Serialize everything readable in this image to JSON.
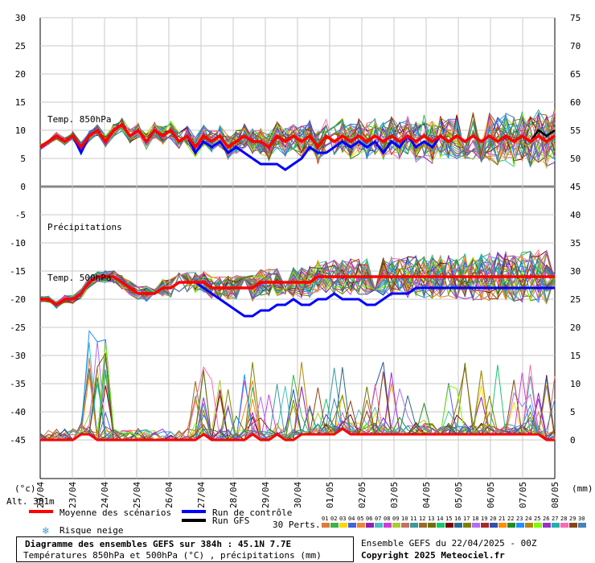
{
  "chart_data": {
    "type": "line",
    "title": "Diagramme des ensembles GEFS sur 384h : 45.1N 7.7E",
    "subtitle": "Températures 850hPa et 500hPa (°C) , précipitations (mm)",
    "run_info": "Ensemble GEFS du 22/04/2025 - 00Z",
    "copyright": "Copyright 2025 Meteociel.fr",
    "left_unit": "(°c)",
    "right_unit": "(mm)",
    "altitude": "Alt. 381m",
    "left_axis": {
      "ylim": [
        -45,
        30
      ],
      "ticks": [
        "30",
        "25",
        "20",
        "15",
        "10",
        "5",
        "0",
        "-5",
        "-10",
        "-15",
        "-20",
        "-25",
        "-30",
        "-35",
        "-40",
        "-45"
      ]
    },
    "right_axis": {
      "ylim": [
        0,
        75
      ],
      "ticks": [
        "75",
        "70",
        "65",
        "60",
        "55",
        "50",
        "45",
        "40",
        "35",
        "30",
        "25",
        "20",
        "15",
        "10",
        "5",
        "0"
      ]
    },
    "x_ticks": [
      "23/04",
      "24/04",
      "25/04",
      "26/04",
      "27/04",
      "28/04",
      "29/04",
      "30/04",
      "01/05",
      "02/05",
      "03/05",
      "04/05",
      "05/05",
      "06/05",
      "07/05",
      "08/05"
    ],
    "panel_labels": {
      "t850": "Temp. 850hPa",
      "precip": "Précipitations",
      "t500": "Temp. 500hPa"
    },
    "legend": {
      "mean": "Moyenne des scénarios",
      "control": "Run de contrôle",
      "gfs": "Run GFS",
      "snow": "Risque neige",
      "perts": "30 Perts.",
      "pert_numbers": [
        "01",
        "02",
        "03",
        "04",
        "05",
        "06",
        "07",
        "08",
        "09",
        "10",
        "11",
        "12",
        "13",
        "14",
        "15",
        "16",
        "17",
        "18",
        "19",
        "20",
        "21",
        "22",
        "23",
        "24",
        "25",
        "26",
        "27",
        "28",
        "29",
        "30"
      ]
    },
    "colors": {
      "mean": "#ff0000",
      "control": "#0000ff",
      "gfs": "#000000",
      "perts": [
        "#e07a3a",
        "#3cb44b",
        "#ffd700",
        "#4363d8",
        "#f58231",
        "#911eb4",
        "#46c0c0",
        "#d63ad6",
        "#aacc33",
        "#c87060",
        "#3a9a9a",
        "#9a6a2a",
        "#707000",
        "#17c46f",
        "#800000",
        "#2a6a8a",
        "#808000",
        "#b070f0",
        "#a52a2a",
        "#3050b0",
        "#ff8c00",
        "#228b22",
        "#1e90ff",
        "#b8860b",
        "#7cfc00",
        "#9932cc",
        "#20b2aa",
        "#ff69b4",
        "#8b4513",
        "#4682b4"
      ]
    },
    "series": {
      "t850_mean": [
        7,
        8,
        9,
        8,
        9,
        7,
        9,
        10,
        8,
        10,
        11,
        9,
        10,
        8,
        10,
        9,
        10,
        8,
        9,
        7,
        9,
        8,
        9,
        7,
        8,
        9,
        8,
        8,
        7,
        9,
        8,
        9,
        8,
        9,
        7,
        9,
        8,
        9,
        8,
        9,
        8,
        9,
        8,
        9,
        8,
        9,
        8,
        9,
        8,
        9,
        8,
        9,
        8,
        9,
        8,
        9,
        8,
        9,
        8,
        9,
        8,
        9,
        8,
        9
      ],
      "t850_control": [
        7,
        8,
        9,
        8,
        9,
        6,
        9,
        10,
        8,
        10,
        11,
        9,
        10,
        8,
        10,
        9,
        10,
        8,
        9,
        6,
        8,
        7,
        8,
        6,
        7,
        6,
        5,
        4,
        4,
        4,
        3,
        4,
        5,
        7,
        6,
        6,
        7,
        8,
        7,
        8,
        7,
        8,
        6,
        8,
        7,
        9,
        7,
        8,
        7,
        9,
        8,
        9,
        8,
        9,
        8,
        9,
        8,
        9,
        8,
        9,
        8,
        9,
        8,
        9
      ],
      "t850_gfs": [
        7,
        8,
        9,
        8,
        9,
        7,
        9,
        10,
        8,
        10,
        11,
        9,
        10,
        8,
        10,
        9,
        10,
        8,
        9,
        7,
        9,
        8,
        9,
        7,
        8,
        9,
        8,
        8,
        7,
        9,
        8,
        9,
        8,
        9,
        7,
        9,
        8,
        9,
        8,
        9,
        8,
        9,
        8,
        9,
        8,
        9,
        8,
        9,
        8,
        9,
        8,
        9,
        8,
        9,
        8,
        9,
        8,
        9,
        8,
        9,
        8,
        10,
        9,
        10
      ],
      "t500_mean": [
        -20,
        -20,
        -21,
        -20,
        -20,
        -19,
        -17,
        -16,
        -16,
        -16,
        -17,
        -18,
        -19,
        -19,
        -19,
        -18,
        -18,
        -17,
        -17,
        -17,
        -17,
        -18,
        -18,
        -18,
        -18,
        -18,
        -18,
        -17,
        -17,
        -17,
        -17,
        -17,
        -17,
        -17,
        -16,
        -16,
        -16,
        -16,
        -16,
        -16,
        -16,
        -16,
        -16,
        -16,
        -16,
        -16,
        -16,
        -16,
        -16,
        -16,
        -16,
        -16,
        -16,
        -16,
        -16,
        -16,
        -16,
        -16,
        -16,
        -16,
        -16,
        -16,
        -16,
        -16
      ],
      "t500_control": [
        -20,
        -20,
        -21,
        -20,
        -20,
        -19,
        -17,
        -16,
        -16,
        -16,
        -17,
        -18,
        -19,
        -19,
        -19,
        -18,
        -18,
        -17,
        -17,
        -17,
        -18,
        -19,
        -20,
        -21,
        -22,
        -23,
        -23,
        -22,
        -22,
        -21,
        -21,
        -20,
        -21,
        -21,
        -20,
        -20,
        -19,
        -20,
        -20,
        -20,
        -21,
        -21,
        -20,
        -19,
        -19,
        -19,
        -18,
        -18,
        -18,
        -18,
        -18,
        -18,
        -18,
        -18,
        -18,
        -18,
        -18,
        -18,
        -18,
        -18,
        -18,
        -18,
        -18,
        -18
      ],
      "precip_mean": [
        0,
        0,
        0,
        0,
        0,
        1,
        1,
        0,
        0,
        0,
        0,
        0,
        0,
        0,
        0,
        0,
        0,
        0,
        0,
        0,
        1,
        0,
        0,
        0,
        0,
        0,
        1,
        0,
        0,
        1,
        0,
        0,
        1,
        1,
        1,
        1,
        1,
        2,
        1,
        1,
        1,
        1,
        1,
        1,
        1,
        1,
        1,
        1,
        1,
        1,
        1,
        1,
        1,
        1,
        1,
        1,
        1,
        1,
        1,
        1,
        1,
        1,
        0,
        0
      ]
    }
  }
}
